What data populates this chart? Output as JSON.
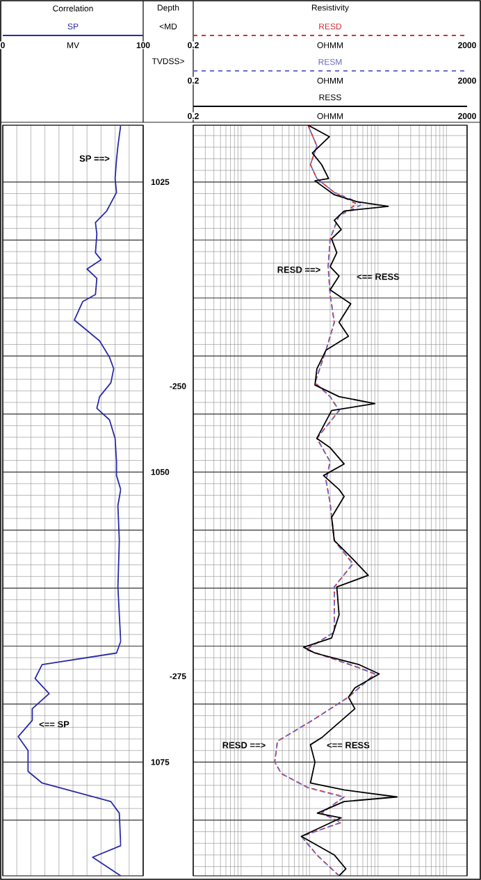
{
  "chart_data": [
    {
      "type": "line",
      "orientation": "horizontal",
      "title": "Correlation",
      "xlabel": "MV",
      "legend": "top",
      "grid": true,
      "xlim": [
        0,
        100
      ],
      "xticks": [
        0,
        100
      ],
      "ylim": [
        1084.8,
        1020.1
      ],
      "yticks": [
        1025,
        {
          "value": 1030,
          "label": null
        },
        {
          "value": 1035,
          "label": null
        },
        {
          "value": 1040,
          "label": null
        },
        {
          "value": 1045,
          "label": null
        },
        1050,
        {
          "value": 1055,
          "label": null
        },
        {
          "value": 1060,
          "label": null
        },
        {
          "value": 1065,
          "label": null
        },
        {
          "value": 1070,
          "label": null
        },
        1075,
        {
          "value": 1080,
          "label": null
        }
      ],
      "y2lim": [
        -292.2,
        -227.5
      ],
      "y2ticks": [
        -250,
        -275
      ],
      "annotations": [
        "Depth",
        "<MD",
        "TVDSS>",
        "SP ==>",
        "<== SP"
      ],
      "series": [
        {
          "name": "SP",
          "color": "#2a2aa8",
          "x": [
            1020.1,
            1021.9,
            1023.1,
            1024.7,
            1025.9,
            1027.5,
            1028.5,
            1029.5,
            1031.1,
            1031.7,
            1032.5,
            1033.3,
            1034.7,
            1035.3,
            1036.9,
            1037.7,
            1038.7,
            1040.1,
            1041.1,
            1042.3,
            1043.5,
            1044.5,
            1045.5,
            1047.1,
            1049.1,
            1050.3,
            1051.5,
            1052.9,
            1055.9,
            1059.9,
            1062.3,
            1064.6,
            1065.6,
            1066.6,
            1067.8,
            1069.1,
            1070.4,
            1071.4,
            1072.8,
            1074.0,
            1075.8,
            1076.8,
            1078.4,
            1079.4,
            1082.2,
            1083.2,
            1084.8
          ],
          "values": [
            84,
            82,
            81,
            80,
            81,
            74,
            66,
            67,
            66,
            70,
            60,
            67,
            66,
            57,
            51,
            59,
            69,
            76,
            79,
            77,
            69,
            67,
            76,
            80,
            81,
            81,
            84,
            82,
            83,
            82,
            83,
            84,
            81,
            28,
            23,
            33,
            21,
            21,
            11,
            18,
            18,
            28,
            77,
            83,
            84,
            64,
            84
          ]
        }
      ]
    },
    {
      "type": "line",
      "orientation": "horizontal",
      "title": "Resistivity",
      "xlabel": "OHMM",
      "legend": "top",
      "grid": true,
      "log": "x",
      "tick_labels": "x",
      "xlim": [
        0.2,
        2000
      ],
      "xticks": [
        0.2,
        2000
      ],
      "ylim": [
        1084.8,
        1020.1
      ],
      "annotations": [
        "RESD ==>",
        "<== RESS",
        "RESD ==>",
        "<== RESS",
        "0.2",
        "2000",
        "0.2",
        "2000"
      ],
      "series": [
        {
          "name": "RESD",
          "color": "#d03038",
          "line_style": "dashed",
          "x": [
            1020.1,
            1021.9,
            1023.5,
            1024.7,
            1025.9,
            1026.9,
            1027.9,
            1029.9,
            1032.3,
            1034.7,
            1037.1,
            1039.5,
            1042.3,
            1043.5,
            1044.7,
            1047.1,
            1049.1,
            1050.7,
            1052.7,
            1055.9,
            1057.9,
            1059.9,
            1063.8,
            1065.3,
            1066.8,
            1067.4,
            1069.4,
            1071.4,
            1073.2,
            1075.0,
            1076.0,
            1077.2,
            1078.0,
            1079.4,
            1080.2,
            1081.4,
            1083.0,
            1084.8
          ],
          "values": [
            9.5,
            12.8,
            10.3,
            12.8,
            23,
            49,
            27,
            20,
            18.7,
            20,
            23,
            17.4,
            12,
            20,
            27,
            12.8,
            20,
            17.4,
            20,
            23,
            43,
            23,
            23,
            8.9,
            49,
            90,
            37,
            11,
            3.4,
            3.1,
            3.9,
            9.5,
            32,
            15,
            29,
            7.6,
            12.8,
            27
          ]
        },
        {
          "name": "RESM",
          "color": "#6a6ac8",
          "line_style": "dashed",
          "x": [
            1020.1,
            1021.9,
            1023.5,
            1024.7,
            1025.9,
            1026.9,
            1027.9,
            1029.9,
            1032.3,
            1034.7,
            1037.1,
            1039.5,
            1042.3,
            1043.5,
            1044.7,
            1047.1,
            1049.1,
            1050.7,
            1052.7,
            1055.9,
            1057.9,
            1059.9,
            1063.8,
            1065.3,
            1066.8,
            1067.4,
            1069.4,
            1071.4,
            1073.2,
            1075.0,
            1076.0,
            1077.2,
            1078.0,
            1079.4,
            1080.2,
            1081.4,
            1083.0,
            1084.8
          ],
          "values": [
            9.5,
            12.8,
            10.3,
            12.8,
            23,
            60,
            27,
            20,
            18.7,
            20,
            23,
            17.4,
            12,
            20,
            27,
            12.8,
            20,
            17.4,
            20,
            23,
            43,
            23,
            23,
            8.9,
            49,
            90,
            37,
            11,
            3.4,
            3.1,
            3.9,
            9.5,
            32,
            15,
            29,
            7.6,
            12.8,
            27
          ]
        },
        {
          "name": "RESS",
          "color": "#000000",
          "line_style": "solid",
          "x": [
            1020.1,
            1021.1,
            1022.5,
            1023.5,
            1024.7,
            1024.9,
            1026.1,
            1026.7,
            1027.1,
            1027.5,
            1028.3,
            1029.1,
            1029.9,
            1031.1,
            1032.3,
            1033.1,
            1034.3,
            1035.5,
            1037.1,
            1038.3,
            1039.5,
            1041.1,
            1042.5,
            1043.5,
            1044.1,
            1044.7,
            1047.1,
            1047.9,
            1049.3,
            1050.3,
            1051.5,
            1052.1,
            1053.9,
            1055.9,
            1057.5,
            1058.9,
            1059.9,
            1062.3,
            1064.3,
            1065.1,
            1065.6,
            1066.6,
            1067.4,
            1068.6,
            1069.4,
            1070.4,
            1072.9,
            1073.5,
            1075.0,
            1076.8,
            1077.4,
            1078.0,
            1078.4,
            1079.4,
            1079.8,
            1081.4,
            1083.0,
            1084.2,
            1084.8
          ],
          "values": [
            9.5,
            19.5,
            11,
            15,
            19,
            12,
            23,
            49,
            141,
            32,
            23,
            29,
            21,
            25,
            20,
            27,
            20,
            40,
            27,
            37,
            17.4,
            12.8,
            12,
            27,
            90,
            21,
            12.8,
            20,
            32,
            16,
            27,
            32,
            21,
            23,
            43,
            72,
            25,
            27,
            21,
            8.2,
            12,
            53,
            104,
            46,
            37,
            46,
            15,
            10.3,
            12,
            10.3,
            32,
            190,
            32,
            13,
            29,
            7.6,
            23,
            34,
            27
          ]
        }
      ]
    }
  ]
}
